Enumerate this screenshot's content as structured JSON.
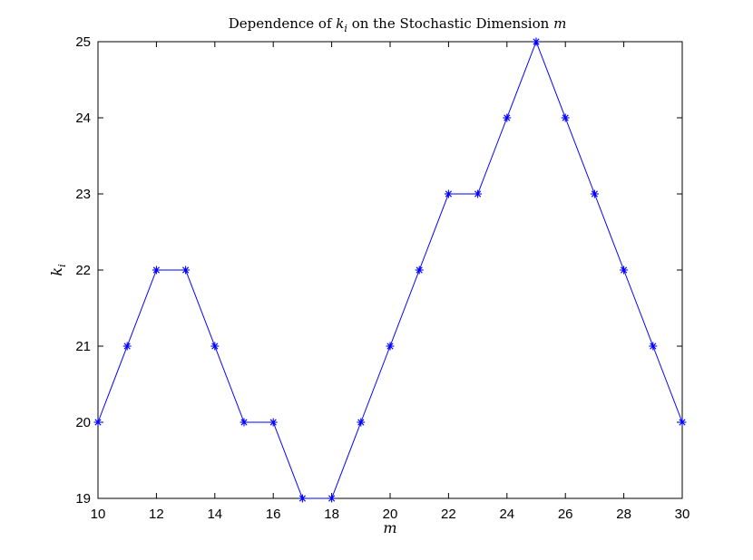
{
  "chart_data": {
    "type": "line",
    "title": {
      "before": "Dependence of ",
      "var": "k",
      "sub": "i",
      "middle": " on the Stochastic Dimension ",
      "end_var": "m"
    },
    "xlabel": "m",
    "ylabel": {
      "var": "k",
      "sub": "i"
    },
    "xlim": [
      10,
      30
    ],
    "ylim": [
      19,
      25
    ],
    "xticks": [
      10,
      12,
      14,
      16,
      18,
      20,
      22,
      24,
      26,
      28,
      30
    ],
    "yticks": [
      19,
      20,
      21,
      22,
      23,
      24,
      25
    ],
    "grid": false,
    "marker": "asterisk",
    "color": "#0000ff",
    "x": [
      10,
      11,
      12,
      13,
      14,
      15,
      16,
      17,
      18,
      19,
      20,
      21,
      22,
      23,
      24,
      25,
      26,
      27,
      28,
      29,
      30
    ],
    "y": [
      20,
      21,
      22,
      22,
      21,
      20,
      20,
      19,
      19,
      20,
      21,
      22,
      23,
      23,
      24,
      25,
      24,
      23,
      22,
      21,
      20
    ]
  }
}
